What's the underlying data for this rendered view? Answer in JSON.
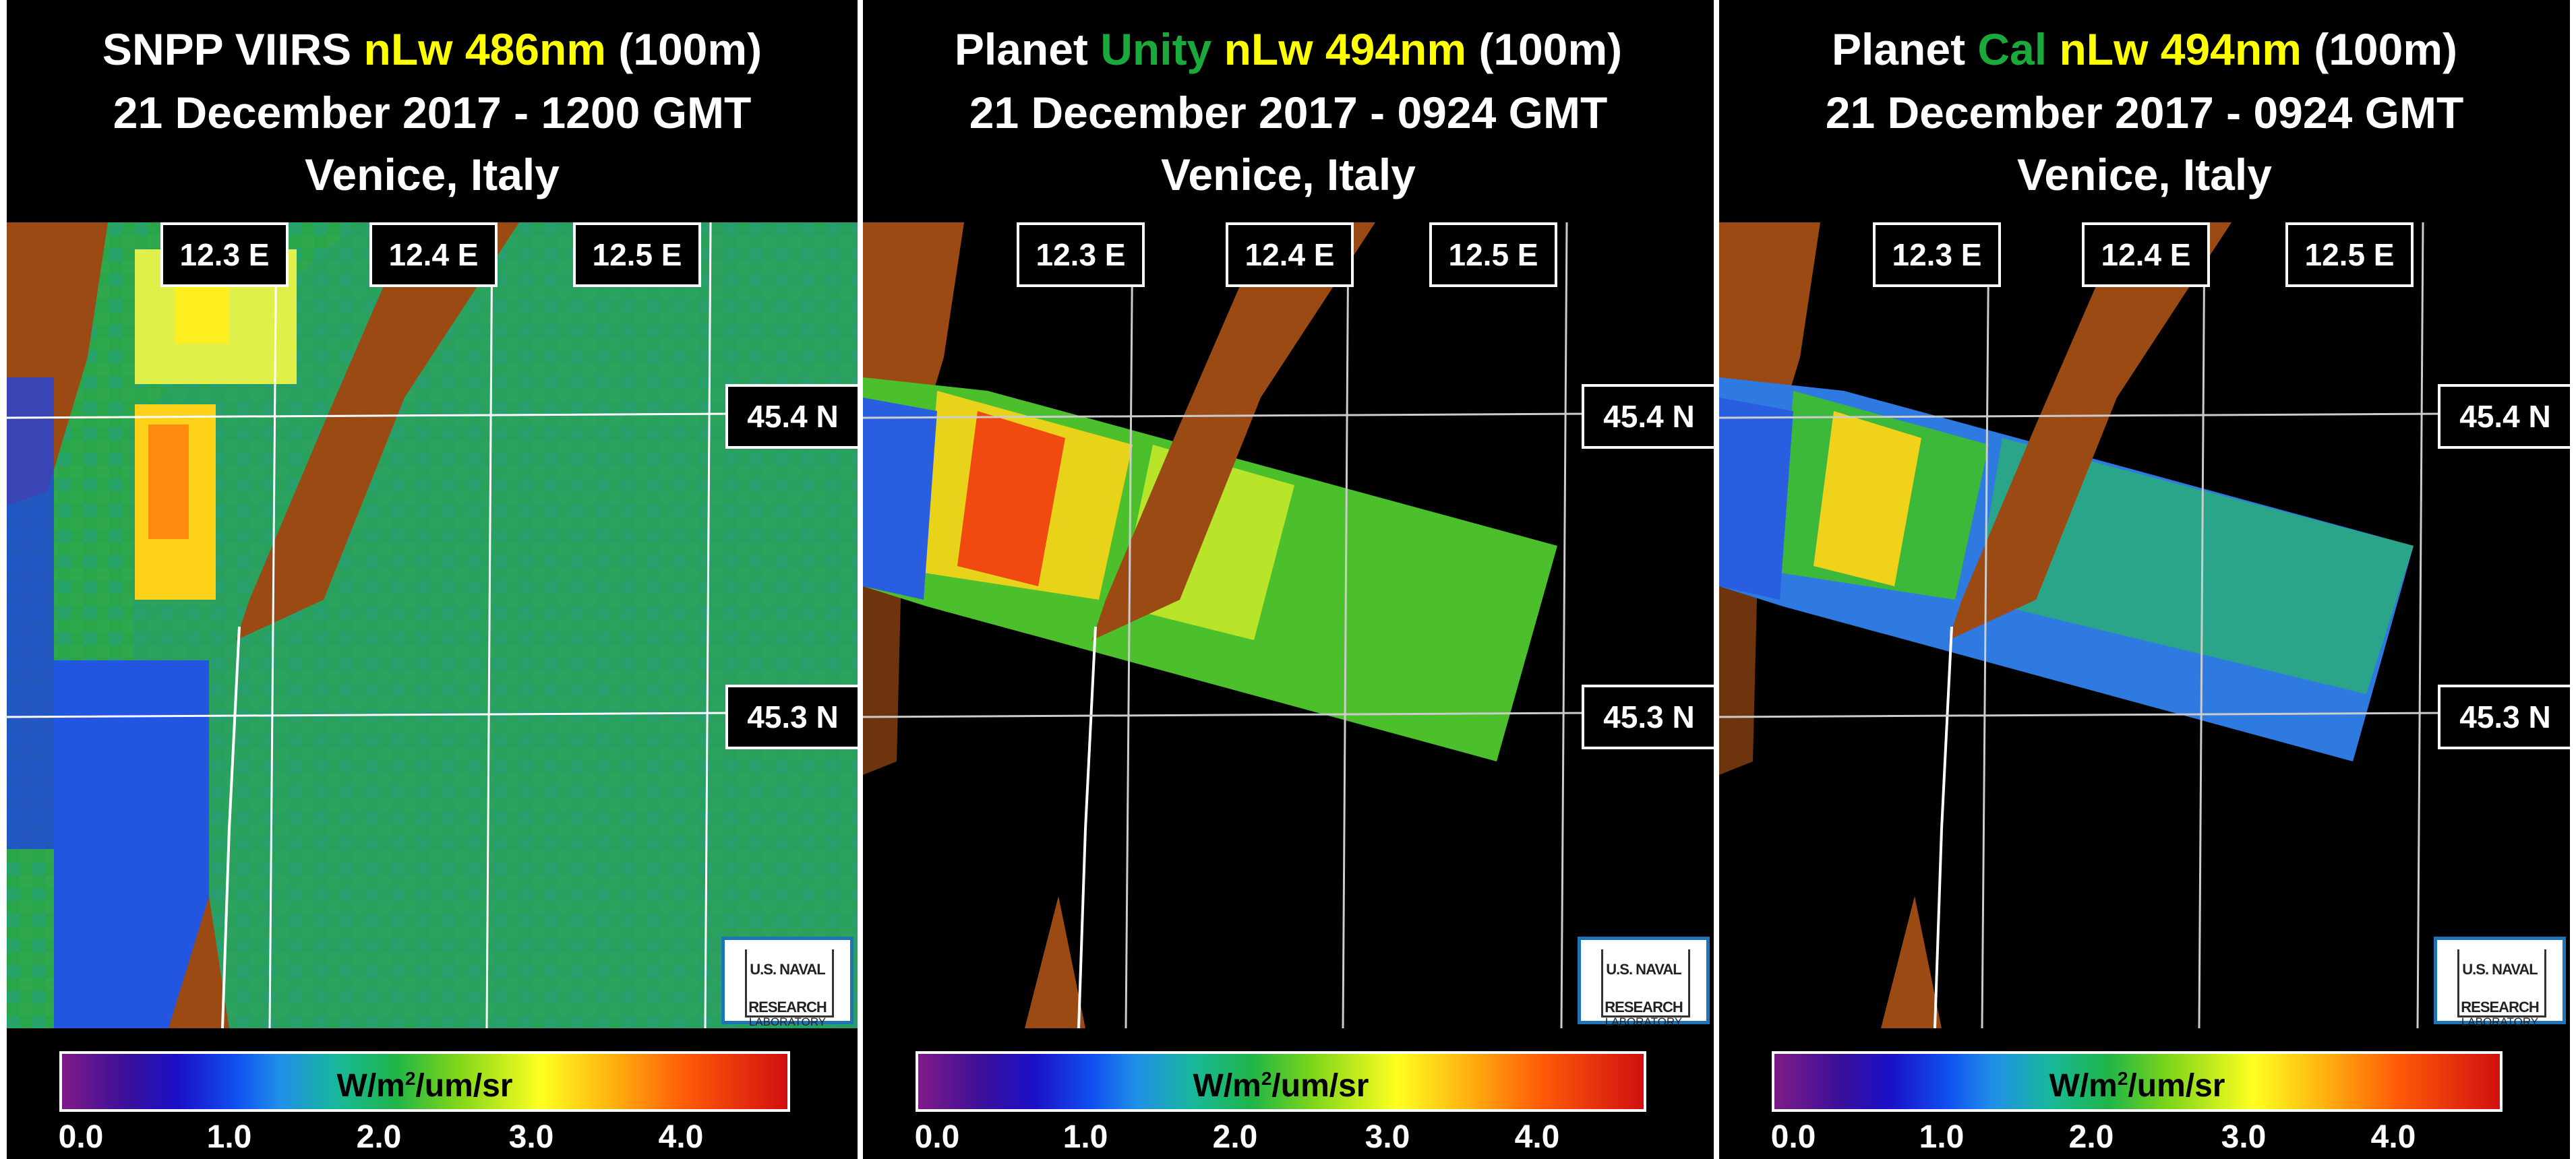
{
  "panels": [
    {
      "title_parts": [
        "SNPP VIIRS ",
        "nLw 486nm",
        " (100m)"
      ],
      "date": "21 December 2017 - 1200 GMT",
      "location": "Venice, Italy"
    },
    {
      "title_parts": [
        "Planet ",
        "Unity",
        " ",
        "nLw 494nm",
        " (100m)"
      ],
      "date": "21 December 2017 - 0924 GMT",
      "location": "Venice, Italy"
    },
    {
      "title_parts": [
        "Planet ",
        "Cal",
        " ",
        "nLw 494nm",
        " (100m)"
      ],
      "date": "21 December 2017 - 0924 GMT",
      "location": "Venice, Italy"
    }
  ],
  "grid_labels": {
    "lon": [
      "12.3 E",
      "12.4 E",
      "12.5 E"
    ],
    "lat": [
      "45.4 N",
      "45.3 N"
    ]
  },
  "colorbar": {
    "unit": "W/m",
    "unit_sup": "2",
    "unit_rest": "/um/sr",
    "ticks": [
      "0.0",
      "1.0",
      "2.0",
      "3.0",
      "4.0"
    ]
  },
  "logo": {
    "line1": "U.S. NAVAL",
    "line2": "RESEARCH",
    "line3": "LABORATORY"
  },
  "colors": {
    "highlight_yellow": "#ffff00",
    "highlight_green": "#1aaa3c",
    "land": "#9c4a14",
    "logo_border": "#1f74b8"
  }
}
